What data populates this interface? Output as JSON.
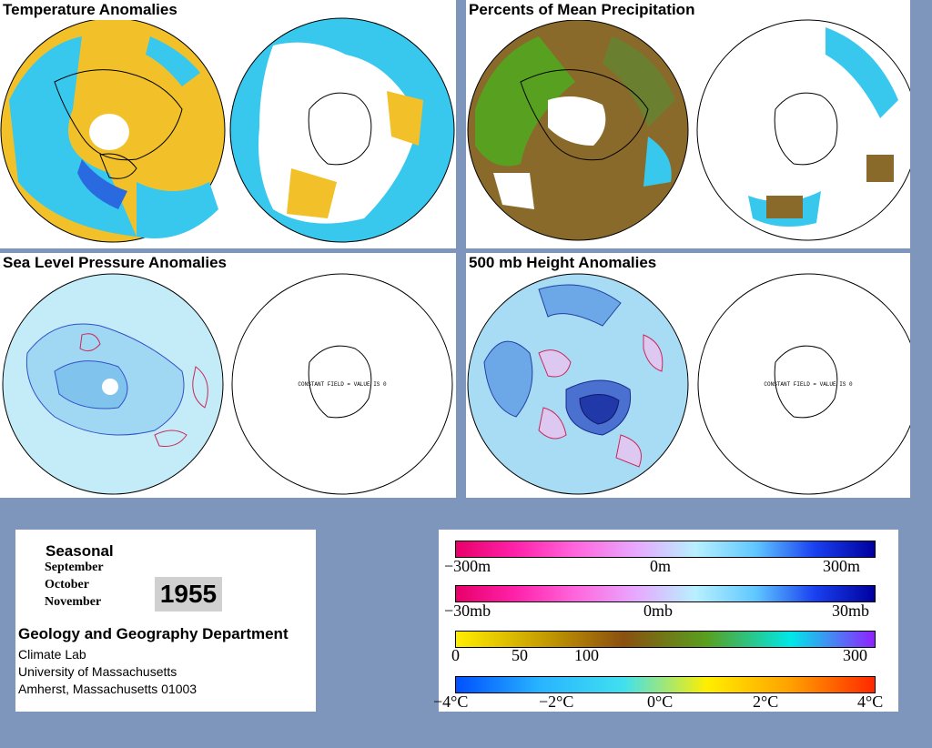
{
  "panels": {
    "temperature": {
      "title": "Temperature Anomalies"
    },
    "precipitation": {
      "title": "Percents of Mean Precipitation"
    },
    "slp": {
      "title": "Sea Level Pressure Anomalies",
      "constant_field": "CONSTANT FIELD = VALUE IS 0"
    },
    "height500": {
      "title": "500 mb Height Anomalies",
      "constant_field": "CONSTANT FIELD = VALUE IS 0"
    }
  },
  "info": {
    "period_type": "Seasonal",
    "months": [
      "September",
      "October",
      "November"
    ],
    "year": "1955",
    "department": "Geology and Geography Department",
    "lines": [
      "Climate Lab",
      "University of Massachusetts",
      "Amherst, Massachusetts 01003"
    ]
  },
  "legends": {
    "height": {
      "labels": [
        "−300m",
        "0m",
        "300m"
      ],
      "colors": [
        "#e8006a",
        "#ff22aa",
        "#ff66dd",
        "#e8a8ff",
        "#b8f0ff",
        "#60c8ff",
        "#1a40f0",
        "#00009e"
      ]
    },
    "pressure": {
      "labels": [
        "−30mb",
        "0mb",
        "30mb"
      ],
      "colors": [
        "#e8006a",
        "#ff22aa",
        "#ff66dd",
        "#e8a8ff",
        "#b8f0ff",
        "#60c8ff",
        "#1a40f0",
        "#00009e"
      ]
    },
    "precip": {
      "labels": [
        "0",
        "50",
        "100",
        "300"
      ],
      "colors": [
        "#ffee00",
        "#c8a000",
        "#8a5010",
        "#58a020",
        "#00e8e8",
        "#9020ff"
      ]
    },
    "temp": {
      "labels": [
        "−4°C",
        "−2°C",
        "0°C",
        "2°C",
        "4°C"
      ],
      "colors": [
        "#0050ff",
        "#28b4ff",
        "#40e0f0",
        "#ffee00",
        "#ffa000",
        "#ff2800"
      ]
    }
  }
}
